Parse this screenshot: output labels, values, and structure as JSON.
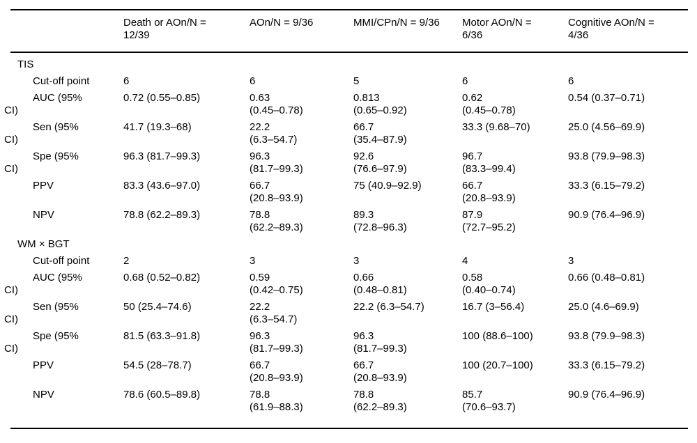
{
  "table": {
    "header": {
      "corner": "",
      "columns": [
        [
          "Death or AOn/N =",
          "12/39"
        ],
        [
          "AOn/N = 9/36"
        ],
        [
          "MMI/CPn/N = 9/36"
        ],
        [
          "Motor AOn/N =",
          "6/36"
        ],
        [
          "Cognitive AOn/N =",
          "4/36"
        ]
      ]
    },
    "sections": [
      {
        "title": "TIS",
        "rows": [
          {
            "label": [
              "Cut-off point"
            ],
            "cells": [
              [
                "6"
              ],
              [
                "6"
              ],
              [
                "5"
              ],
              [
                "6"
              ],
              [
                "6"
              ]
            ]
          },
          {
            "label": [
              "AUC (95%",
              "CI)"
            ],
            "cells": [
              [
                "0.72 (0.55–0.85)"
              ],
              [
                "0.63",
                "(0.45–0.78)"
              ],
              [
                "0.813",
                "(0.65–0.92)"
              ],
              [
                "0.62",
                "(0.45–0.78)"
              ],
              [
                "0.54 (0.37–0.71)"
              ]
            ]
          },
          {
            "label": [
              "Sen (95%",
              "CI)"
            ],
            "cells": [
              [
                "41.7 (19.3–68)"
              ],
              [
                "22.2",
                "(6.3–54.7)"
              ],
              [
                "66.7",
                "(35.4–87.9)"
              ],
              [
                "33.3 (9.68–70)"
              ],
              [
                "25.0 (4.56–69.9)"
              ]
            ]
          },
          {
            "label": [
              "Spe (95%",
              "CI)"
            ],
            "cells": [
              [
                "96.3 (81.7–99.3)"
              ],
              [
                "96.3",
                "(81.7–99.3)"
              ],
              [
                "92.6",
                "(76.6–97.9)"
              ],
              [
                "96.7",
                "(83.3–99.4)"
              ],
              [
                "93.8 (79.9–98.3)"
              ]
            ]
          },
          {
            "label": [
              "PPV"
            ],
            "cells": [
              [
                "83.3 (43.6–97.0)"
              ],
              [
                "66.7",
                "(20.8–93.9)"
              ],
              [
                "75 (40.9–92.9)"
              ],
              [
                "66.7",
                "(20.8–93.9)"
              ],
              [
                "33.3 (6.15–79.2)"
              ]
            ]
          },
          {
            "label": [
              "NPV"
            ],
            "cells": [
              [
                "78.8 (62.2–89.3)"
              ],
              [
                "78.8",
                "(62.2–89.3)"
              ],
              [
                "89.3",
                "(72.8–96.3)"
              ],
              [
                "87.9",
                "(72.7–95.2)"
              ],
              [
                "90.9 (76.4–96.9)"
              ]
            ]
          }
        ]
      },
      {
        "title": "WM × BGT",
        "rows": [
          {
            "label": [
              "Cut-off point"
            ],
            "cells": [
              [
                "2"
              ],
              [
                "3"
              ],
              [
                "3"
              ],
              [
                "4"
              ],
              [
                "3"
              ]
            ]
          },
          {
            "label": [
              "AUC (95%",
              "CI)"
            ],
            "cells": [
              [
                "0.68 (0.52–0.82)"
              ],
              [
                "0.59",
                "(0.42–0.75)"
              ],
              [
                "0.66",
                "(0.48–0.81)"
              ],
              [
                "0.58",
                "(0.40–0.74)"
              ],
              [
                "0.66 (0.48–0.81)"
              ]
            ]
          },
          {
            "label": [
              "Sen (95%",
              "CI)"
            ],
            "cells": [
              [
                "50 (25.4–74.6)"
              ],
              [
                "22.2",
                "(6.3–54.7)"
              ],
              [
                "22.2 (6.3–54.7)"
              ],
              [
                "16.7 (3–56.4)"
              ],
              [
                "25.0 (4.6–69.9)"
              ]
            ]
          },
          {
            "label": [
              "Spe (95%",
              "CI)"
            ],
            "cells": [
              [
                "81.5 (63.3–91.8)"
              ],
              [
                "96.3",
                "(81.7–99.3)"
              ],
              [
                "96.3",
                "(81.7–99.3)"
              ],
              [
                "100 (88.6–100)"
              ],
              [
                "93.8 (79.9–98.3)"
              ]
            ]
          },
          {
            "label": [
              "PPV"
            ],
            "cells": [
              [
                "54.5 (28–78.7)"
              ],
              [
                "66.7",
                "(20.8–93.9)"
              ],
              [
                "66.7",
                "(20.8–93.9)"
              ],
              [
                "100 (20.7–100)"
              ],
              [
                "33.3 (6.15–79.2)"
              ]
            ]
          },
          {
            "label": [
              "NPV"
            ],
            "cells": [
              [
                "78.6 (60.5–89.8)"
              ],
              [
                "78.8",
                "(61.9–88.3)"
              ],
              [
                "78.8",
                "(62.2–89.3)"
              ],
              [
                "85.7",
                "(70.6–93.7)"
              ],
              [
                "90.9 (76.4–96.9)"
              ]
            ]
          }
        ]
      }
    ]
  }
}
